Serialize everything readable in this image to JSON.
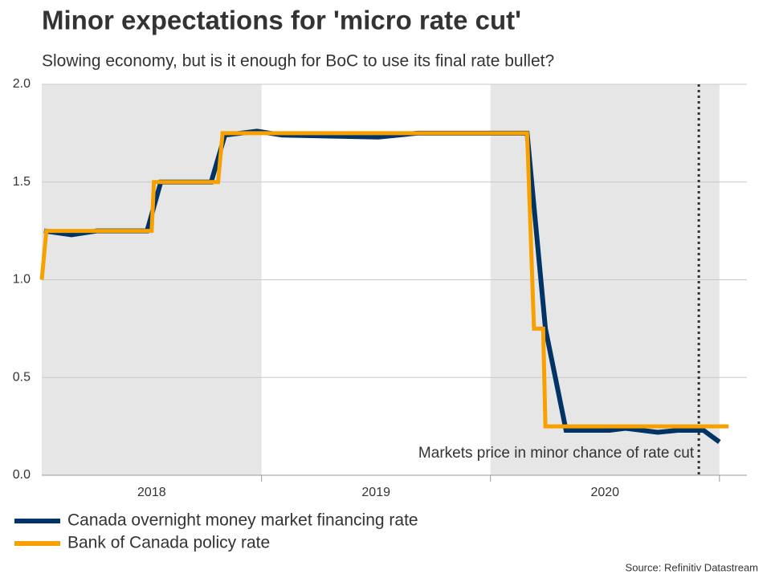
{
  "chart_data": {
    "type": "line",
    "title": "Minor expectations for 'micro rate cut'",
    "subtitle": "Slowing economy, but is it enough for BoC to use its final rate bullet?",
    "source": "Source: Refinitiv Datastream",
    "annotation": {
      "text": "Markets price in minor chance of rate cut",
      "x": 2020.91
    },
    "xlim": [
      2018.04,
      2021.12
    ],
    "xticks": [
      2019,
      2020,
      2021
    ],
    "year_bands": [
      {
        "label": "2018",
        "start": 2018,
        "end": 2019,
        "shaded": true
      },
      {
        "label": "2019",
        "start": 2019,
        "end": 2020,
        "shaded": false
      },
      {
        "label": "2020",
        "start": 2020,
        "end": 2021,
        "shaded": true
      }
    ],
    "ylim": [
      0,
      2
    ],
    "yticks": [
      {
        "value": 0,
        "label": "0.0"
      },
      0.5,
      {
        "value": 1,
        "label": "1.0"
      },
      1.5,
      {
        "value": 2,
        "label": "2.0"
      }
    ],
    "grid": true,
    "legend": "bottom-left",
    "series": [
      {
        "name": "Canada overnight money market financing rate",
        "color": "#003466",
        "x": [
          2018.05,
          2018.17,
          2018.28,
          2018.5,
          2018.56,
          2018.78,
          2018.84,
          2018.98,
          2019.09,
          2019.51,
          2019.68,
          2020.16,
          2020.24,
          2020.33,
          2020.52,
          2020.59,
          2020.73,
          2020.82,
          2020.93,
          2021.0
        ],
        "values": [
          1.25,
          1.23,
          1.25,
          1.25,
          1.5,
          1.5,
          1.74,
          1.76,
          1.74,
          1.73,
          1.75,
          1.75,
          0.75,
          0.23,
          0.23,
          0.24,
          0.22,
          0.23,
          0.23,
          0.17
        ]
      },
      {
        "name": "Bank of Canada policy rate",
        "color": "#f7a000",
        "x": [
          2018.04,
          2018.06,
          2018.52,
          2018.53,
          2018.81,
          2018.83,
          2020.16,
          2020.19,
          2020.23,
          2020.24,
          2021.04
        ],
        "values": [
          1.0,
          1.25,
          1.25,
          1.5,
          1.5,
          1.75,
          1.75,
          0.75,
          0.75,
          0.25,
          0.25
        ]
      }
    ]
  }
}
